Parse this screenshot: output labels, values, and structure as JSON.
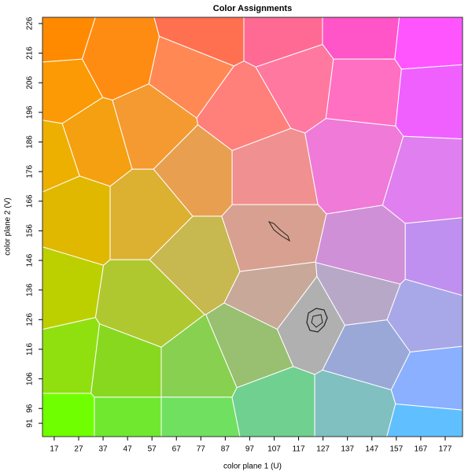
{
  "chart_data": {
    "type": "region-map",
    "title": "Color Assignments",
    "xlabel": "color plane 1 (U)",
    "ylabel": "color plane 2 (V)",
    "xlim": [
      12.2,
      184.1
    ],
    "ylim": [
      86.5,
      228.1
    ],
    "xticks": [
      17,
      27,
      37,
      47,
      57,
      67,
      77,
      87,
      97,
      107,
      117,
      127,
      137,
      147,
      157,
      167,
      177
    ],
    "yticks": [
      91,
      96,
      106,
      116,
      126,
      136,
      146,
      156,
      166,
      176,
      186,
      196,
      206,
      216,
      226
    ],
    "cells": [
      {
        "u": 17.4,
        "v": 222.0,
        "color": "#ff8a00"
      },
      {
        "u": 43.1,
        "v": 215.3,
        "color": "#ff8c12"
      },
      {
        "u": 78.5,
        "v": 223.3,
        "color": "#ff7050"
      },
      {
        "u": 110.7,
        "v": 223.3,
        "color": "#ff6a95"
      },
      {
        "u": 142.9,
        "v": 223.3,
        "color": "#ff55c8"
      },
      {
        "u": 171.9,
        "v": 220.7,
        "color": "#ff55ff"
      },
      {
        "u": 19.0,
        "v": 204.7,
        "color": "#fb9a05"
      },
      {
        "u": 72.1,
        "v": 210.0,
        "color": "#ff8855"
      },
      {
        "u": 94.6,
        "v": 196.7,
        "color": "#ff7f7a"
      },
      {
        "u": 117.2,
        "v": 207.4,
        "color": "#ff78a0"
      },
      {
        "u": 142.9,
        "v": 204.7,
        "color": "#ff70c2"
      },
      {
        "u": 173.5,
        "v": 202.1,
        "color": "#f060ff"
      },
      {
        "u": 33.5,
        "v": 186.1,
        "color": "#f5a010"
      },
      {
        "u": 14.1,
        "v": 180.8,
        "color": "#eeb000"
      },
      {
        "u": 56.0,
        "v": 191.4,
        "color": "#f59a30"
      },
      {
        "u": 75.3,
        "v": 175.5,
        "color": "#e8a050"
      },
      {
        "u": 104.3,
        "v": 175.5,
        "color": "#f09090"
      },
      {
        "u": 139.7,
        "v": 180.8,
        "color": "#f07ad8"
      },
      {
        "u": 171.9,
        "v": 172.8,
        "color": "#e080f0"
      },
      {
        "u": 23.8,
        "v": 162.2,
        "color": "#e0b800"
      },
      {
        "u": 56.0,
        "v": 162.2,
        "color": "#dcb030"
      },
      {
        "u": 104.3,
        "v": 154.2,
        "color": "#d8a090"
      },
      {
        "u": 146.2,
        "v": 146.3,
        "color": "#d090d8"
      },
      {
        "u": 175.1,
        "v": 146.3,
        "color": "#c090f0"
      },
      {
        "u": 14.1,
        "v": 135.6,
        "color": "#bcd000"
      },
      {
        "u": 75.3,
        "v": 146.3,
        "color": "#c8b850"
      },
      {
        "u": 56.0,
        "v": 130.3,
        "color": "#b0c830"
      },
      {
        "u": 107.5,
        "v": 133.0,
        "color": "#c8a898"
      },
      {
        "u": 142.9,
        "v": 135.6,
        "color": "#b8a8c8"
      },
      {
        "u": 168.7,
        "v": 127.7,
        "color": "#a8a8e8"
      },
      {
        "u": 20.6,
        "v": 111.7,
        "color": "#90e010"
      },
      {
        "u": 46.3,
        "v": 109.1,
        "color": "#88d820"
      },
      {
        "u": 75.3,
        "v": 109.1,
        "color": "#88d050"
      },
      {
        "u": 97.9,
        "v": 117.0,
        "color": "#98c070"
      },
      {
        "u": 120.4,
        "v": 125.0,
        "color": "#b0b0b0"
      },
      {
        "u": 146.2,
        "v": 114.4,
        "color": "#9aa8d8"
      },
      {
        "u": 171.9,
        "v": 103.8,
        "color": "#8ab0ff"
      },
      {
        "u": 20.6,
        "v": 90.5,
        "color": "#70ff00"
      },
      {
        "u": 46.3,
        "v": 90.5,
        "color": "#70e830"
      },
      {
        "u": 75.3,
        "v": 90.5,
        "color": "#70e060"
      },
      {
        "u": 107.5,
        "v": 95.8,
        "color": "#70d090"
      },
      {
        "u": 139.7,
        "v": 95.8,
        "color": "#80c0c0"
      },
      {
        "u": 170.3,
        "v": 89.1,
        "color": "#60c0ff"
      }
    ]
  }
}
